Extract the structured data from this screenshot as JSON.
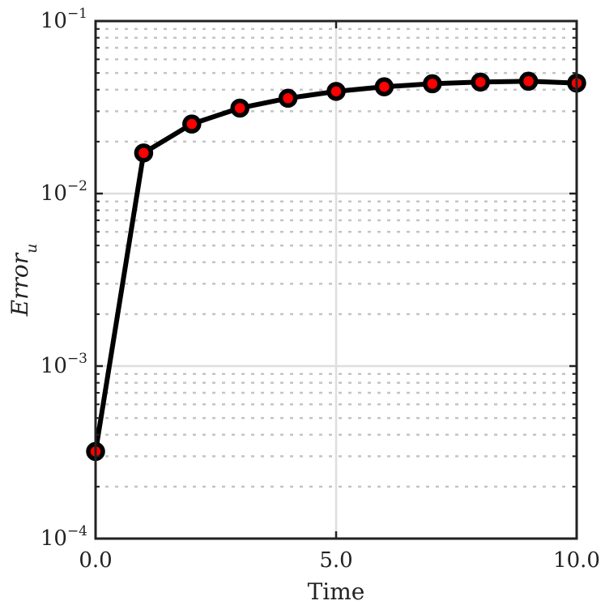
{
  "chart_data": {
    "type": "line",
    "xlabel": "Time",
    "ylabel": "Error",
    "ylabel_subscript": "u",
    "yscale": "log",
    "xlim": [
      0,
      10
    ],
    "ylim": [
      0.0001,
      0.1
    ],
    "x_ticks": [
      {
        "value": 0,
        "label": "0.0"
      },
      {
        "value": 5,
        "label": "5.0"
      },
      {
        "value": 10,
        "label": "10.0"
      }
    ],
    "y_ticks": [
      {
        "value": 0.0001,
        "base": "10",
        "exp": "−4"
      },
      {
        "value": 0.001,
        "base": "10",
        "exp": "−3"
      },
      {
        "value": 0.01,
        "base": "10",
        "exp": "−2"
      },
      {
        "value": 0.1,
        "base": "10",
        "exp": "−1"
      }
    ],
    "grid": true,
    "series": [
      {
        "line_color": "#000000",
        "marker_fill": "#ff0000",
        "marker_edge": "#000000",
        "x": [
          0,
          1,
          2,
          3,
          4,
          5,
          6,
          7,
          8,
          9,
          10
        ],
        "y": [
          0.00032,
          0.0172,
          0.0253,
          0.0313,
          0.0357,
          0.0391,
          0.0416,
          0.0433,
          0.0443,
          0.0448,
          0.0437
        ]
      }
    ]
  }
}
